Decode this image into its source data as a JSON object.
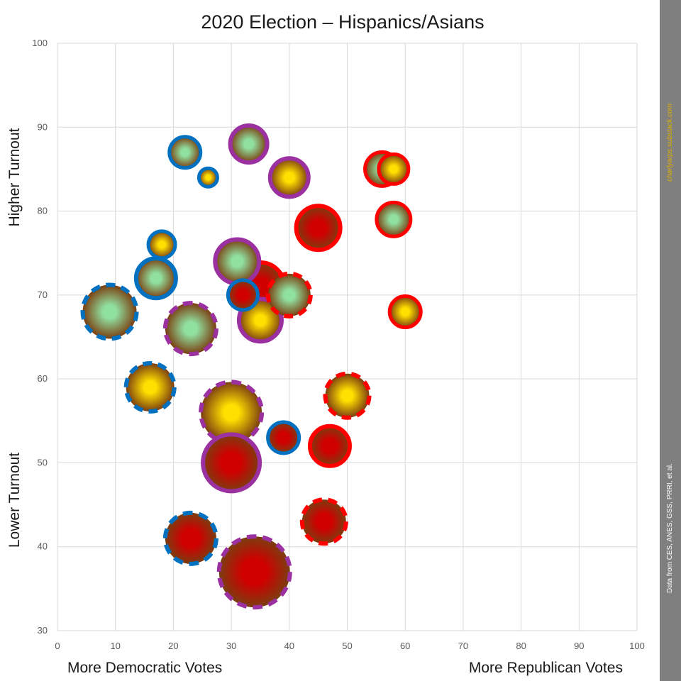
{
  "chart_data": {
    "type": "scatter",
    "title": "2020 Election – Hispanics/Asians",
    "xlim": [
      0,
      100
    ],
    "ylim": [
      30,
      100
    ],
    "x_ticks": [
      0,
      10,
      20,
      30,
      40,
      50,
      60,
      70,
      80,
      90,
      100
    ],
    "y_ticks": [
      30,
      40,
      50,
      60,
      70,
      80,
      90,
      100
    ],
    "x_labels": {
      "left": "More Democratic Votes",
      "right": "More Republican Votes"
    },
    "y_labels": {
      "top": "Higher Turnout",
      "bottom": "Lower Turnout"
    },
    "grid": true,
    "colors": {
      "blue": "#0070c0",
      "purple": "#9b30a0",
      "red": "#ff0000",
      "fill_green": "#90e0a0",
      "fill_yellow": "#ffe000",
      "fill_red": "#d00000",
      "fill_brown": "#7a3e10"
    },
    "points": [
      {
        "x": 34,
        "y": 37,
        "size": 5.0,
        "ring": "purple",
        "dashed": true,
        "center": "red"
      },
      {
        "x": 30,
        "y": 50,
        "size": 4.0,
        "ring": "purple",
        "dashed": false,
        "center": "red"
      },
      {
        "x": 30,
        "y": 56,
        "size": 4.3,
        "ring": "purple",
        "dashed": true,
        "center": "yellow"
      },
      {
        "x": 23,
        "y": 41,
        "size": 3.6,
        "ring": "blue",
        "dashed": true,
        "center": "red"
      },
      {
        "x": 16,
        "y": 59,
        "size": 3.4,
        "ring": "blue",
        "dashed": true,
        "center": "yellow"
      },
      {
        "x": 9,
        "y": 68,
        "size": 3.8,
        "ring": "blue",
        "dashed": true,
        "center": "green"
      },
      {
        "x": 23,
        "y": 66,
        "size": 3.6,
        "ring": "purple",
        "dashed": true,
        "center": "green"
      },
      {
        "x": 35,
        "y": 71,
        "size": 3.4,
        "ring": "red",
        "dashed": false,
        "center": "red"
      },
      {
        "x": 31,
        "y": 74,
        "size": 3.1,
        "ring": "purple",
        "dashed": false,
        "center": "green"
      },
      {
        "x": 35,
        "y": 67,
        "size": 3.0,
        "ring": "purple",
        "dashed": false,
        "center": "yellow"
      },
      {
        "x": 40,
        "y": 70,
        "size": 3.0,
        "ring": "red",
        "dashed": true,
        "center": "green"
      },
      {
        "x": 32,
        "y": 70,
        "size": 2.1,
        "ring": "blue",
        "dashed": false,
        "center": "red"
      },
      {
        "x": 17,
        "y": 72,
        "size": 2.8,
        "ring": "blue",
        "dashed": false,
        "center": "green"
      },
      {
        "x": 18,
        "y": 76,
        "size": 1.9,
        "ring": "blue",
        "dashed": false,
        "center": "yellow"
      },
      {
        "x": 22,
        "y": 87,
        "size": 2.2,
        "ring": "blue",
        "dashed": false,
        "center": "green"
      },
      {
        "x": 26,
        "y": 84,
        "size": 1.3,
        "ring": "blue",
        "dashed": false,
        "center": "yellow"
      },
      {
        "x": 33,
        "y": 88,
        "size": 2.6,
        "ring": "purple",
        "dashed": false,
        "center": "green"
      },
      {
        "x": 40,
        "y": 84,
        "size": 2.7,
        "ring": "purple",
        "dashed": false,
        "center": "yellow"
      },
      {
        "x": 45,
        "y": 78,
        "size": 3.1,
        "ring": "red",
        "dashed": false,
        "center": "red"
      },
      {
        "x": 56,
        "y": 85,
        "size": 2.4,
        "ring": "red",
        "dashed": false,
        "center": "green"
      },
      {
        "x": 58,
        "y": 85,
        "size": 2.1,
        "ring": "red",
        "dashed": false,
        "center": "yellow"
      },
      {
        "x": 58,
        "y": 79,
        "size": 2.4,
        "ring": "red",
        "dashed": false,
        "center": "green"
      },
      {
        "x": 60,
        "y": 68,
        "size": 2.2,
        "ring": "red",
        "dashed": false,
        "center": "yellow"
      },
      {
        "x": 50,
        "y": 58,
        "size": 3.1,
        "ring": "red",
        "dashed": true,
        "center": "yellow"
      },
      {
        "x": 39,
        "y": 53,
        "size": 2.2,
        "ring": "blue",
        "dashed": false,
        "center": "red"
      },
      {
        "x": 47,
        "y": 52,
        "size": 2.8,
        "ring": "red",
        "dashed": false,
        "center": "red"
      },
      {
        "x": 46,
        "y": 43,
        "size": 3.1,
        "ring": "red",
        "dashed": true,
        "center": "red"
      }
    ]
  },
  "sidebar": {
    "url": "charlyarps.substack.com",
    "source": "Data from CES, ANES, GSS, PRRI, et al."
  }
}
